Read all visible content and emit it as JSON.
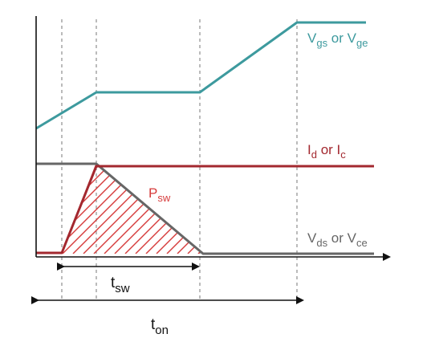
{
  "diagram": {
    "colors": {
      "vgs": "#3d9a9e",
      "id": "#a3282f",
      "vds": "#666666",
      "psw": "#d63b3b",
      "axis": "#111111",
      "guide": "#777777"
    },
    "labels": {
      "vgs": {
        "p1": "V",
        "s1": "gs",
        "p2": " or V",
        "s2": "ge"
      },
      "id": {
        "p1": "I",
        "s1": "d",
        "p2": " or I",
        "s2": "c"
      },
      "vds": {
        "p1": "V",
        "s1": "ds",
        "p2": " or V",
        "s2": "ce"
      },
      "psw": {
        "p1": "P",
        "s1": "sw"
      },
      "tsw": {
        "p1": "t",
        "s1": "sw"
      },
      "ton": {
        "p1": "t",
        "s1": "on"
      }
    }
  }
}
